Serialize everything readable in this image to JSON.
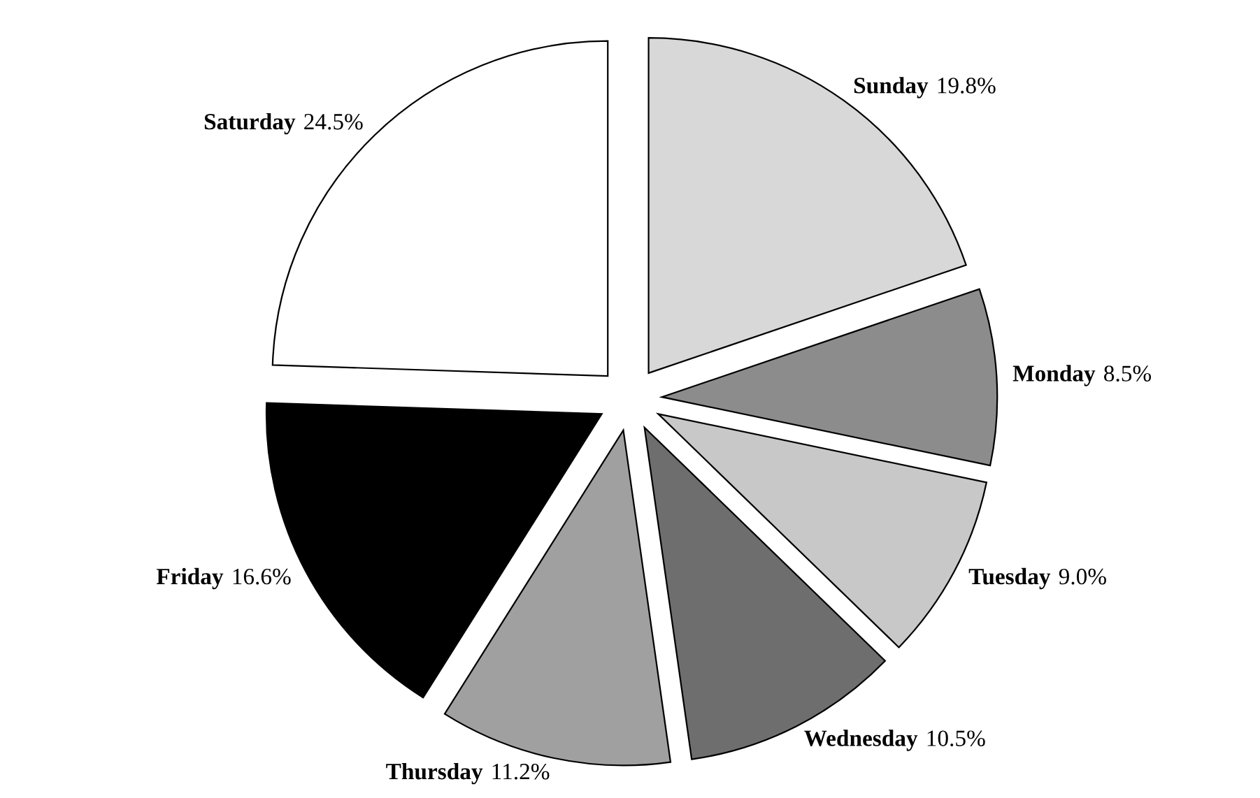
{
  "chart_data": {
    "type": "pie",
    "categories": [
      "Sunday",
      "Monday",
      "Tuesday",
      "Wednesday",
      "Thursday",
      "Friday",
      "Saturday"
    ],
    "values": [
      19.8,
      8.5,
      9.0,
      10.5,
      11.2,
      16.6,
      24.5
    ],
    "value_labels": [
      "19.8%",
      "8.5%",
      "9.0%",
      "10.5%",
      "11.2%",
      "16.6%",
      "24.5%"
    ],
    "colors": [
      "#d8d8d8",
      "#8c8c8c",
      "#c8c8c8",
      "#6e6e6e",
      "#a0a0a0",
      "#000000",
      "#ffffff"
    ],
    "legend": false
  }
}
